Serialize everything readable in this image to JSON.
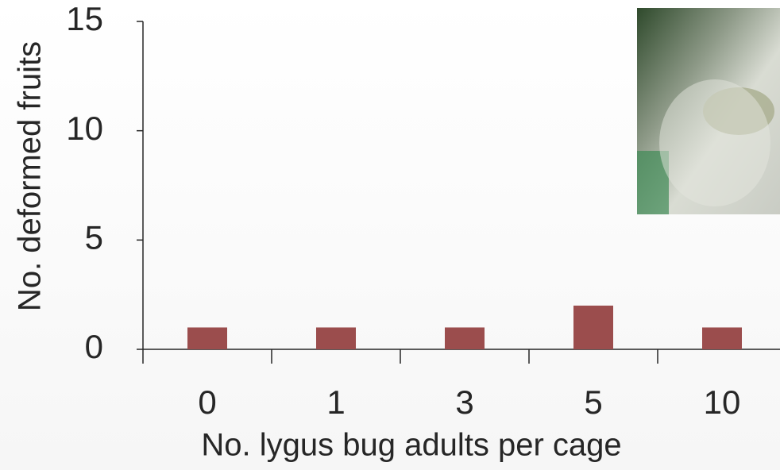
{
  "chart_data": {
    "type": "bar",
    "x_label": "No. lygus bug adults per cage",
    "y_label": "No. deformed fruits",
    "categories": [
      "0",
      "1",
      "3",
      "5",
      "10"
    ],
    "values": [
      1,
      1,
      1,
      2,
      1
    ],
    "color": "#9b4d4d",
    "ylim": [
      0,
      15
    ],
    "yticks": [
      0,
      5,
      10,
      15
    ],
    "grid": false
  }
}
